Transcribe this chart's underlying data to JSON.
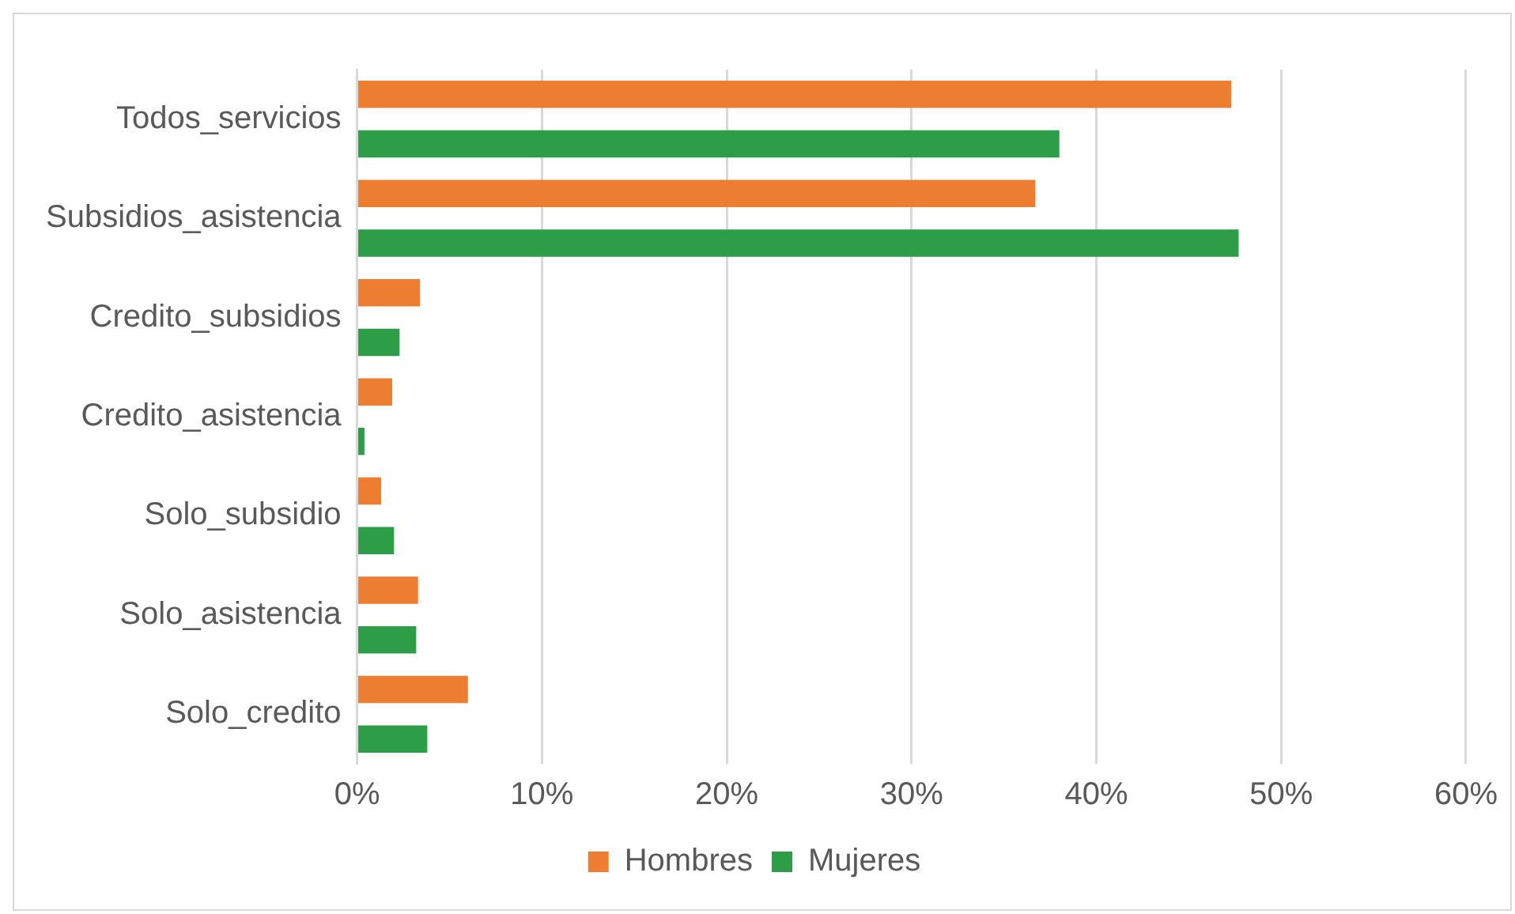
{
  "chart_data": {
    "type": "bar",
    "orientation": "horizontal",
    "categories": [
      "Todos_servicios",
      "Subsidios_asistencia",
      "Credito_subsidios",
      "Credito_asistencia",
      "Solo_subsidio",
      "Solo_asistencia",
      "Solo_credito"
    ],
    "series": [
      {
        "name": "Hombres",
        "color": "#ed7d31",
        "values": [
          47.3,
          36.7,
          3.4,
          1.9,
          1.3,
          3.3,
          6.0
        ]
      },
      {
        "name": "Mujeres",
        "color": "#2e9d48",
        "values": [
          38.0,
          47.7,
          2.3,
          0.4,
          2.0,
          3.2,
          3.8
        ]
      }
    ],
    "xlim": [
      0,
      60
    ],
    "xticks": [
      {
        "value": 0,
        "label": "0%"
      },
      {
        "value": 10,
        "label": "10%"
      },
      {
        "value": 20,
        "label": "20%"
      },
      {
        "value": 30,
        "label": "30%"
      },
      {
        "value": 40,
        "label": "40%"
      },
      {
        "value": 50,
        "label": "50%"
      },
      {
        "value": 60,
        "label": "60%"
      }
    ],
    "grid": "x",
    "legend": "bottom"
  }
}
